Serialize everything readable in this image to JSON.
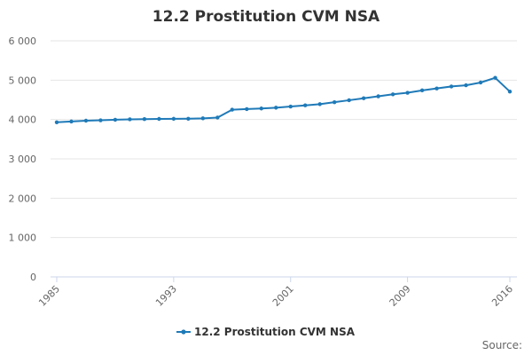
{
  "chart_data": {
    "type": "line",
    "title": "12.2 Prostitution CVM NSA",
    "xlabel": "",
    "ylabel": "",
    "x": [
      1985,
      1986,
      1987,
      1988,
      1989,
      1990,
      1991,
      1992,
      1993,
      1994,
      1995,
      1996,
      1997,
      1998,
      1999,
      2000,
      2001,
      2002,
      2003,
      2004,
      2005,
      2006,
      2007,
      2008,
      2009,
      2010,
      2011,
      2012,
      2013,
      2014,
      2015,
      2016
    ],
    "x_tick_labels": [
      "1985",
      "1993",
      "2001",
      "2009",
      "2016"
    ],
    "y_tick_labels": [
      "0",
      "1 000",
      "2 000",
      "3 000",
      "4 000",
      "5 000",
      "6 000"
    ],
    "ylim": [
      0,
      6000
    ],
    "grid": true,
    "legend_position": "bottom-center",
    "series": [
      {
        "name": "12.2 Prostitution CVM NSA",
        "color": "#1f7ab8",
        "values": [
          3930,
          3950,
          3970,
          3980,
          3995,
          4005,
          4010,
          4015,
          4018,
          4020,
          4030,
          4050,
          4250,
          4265,
          4280,
          4300,
          4330,
          4360,
          4390,
          4440,
          4490,
          4540,
          4590,
          4640,
          4680,
          4740,
          4790,
          4840,
          4870,
          4940,
          5060,
          4710
        ]
      }
    ],
    "source_label": "Source:"
  }
}
